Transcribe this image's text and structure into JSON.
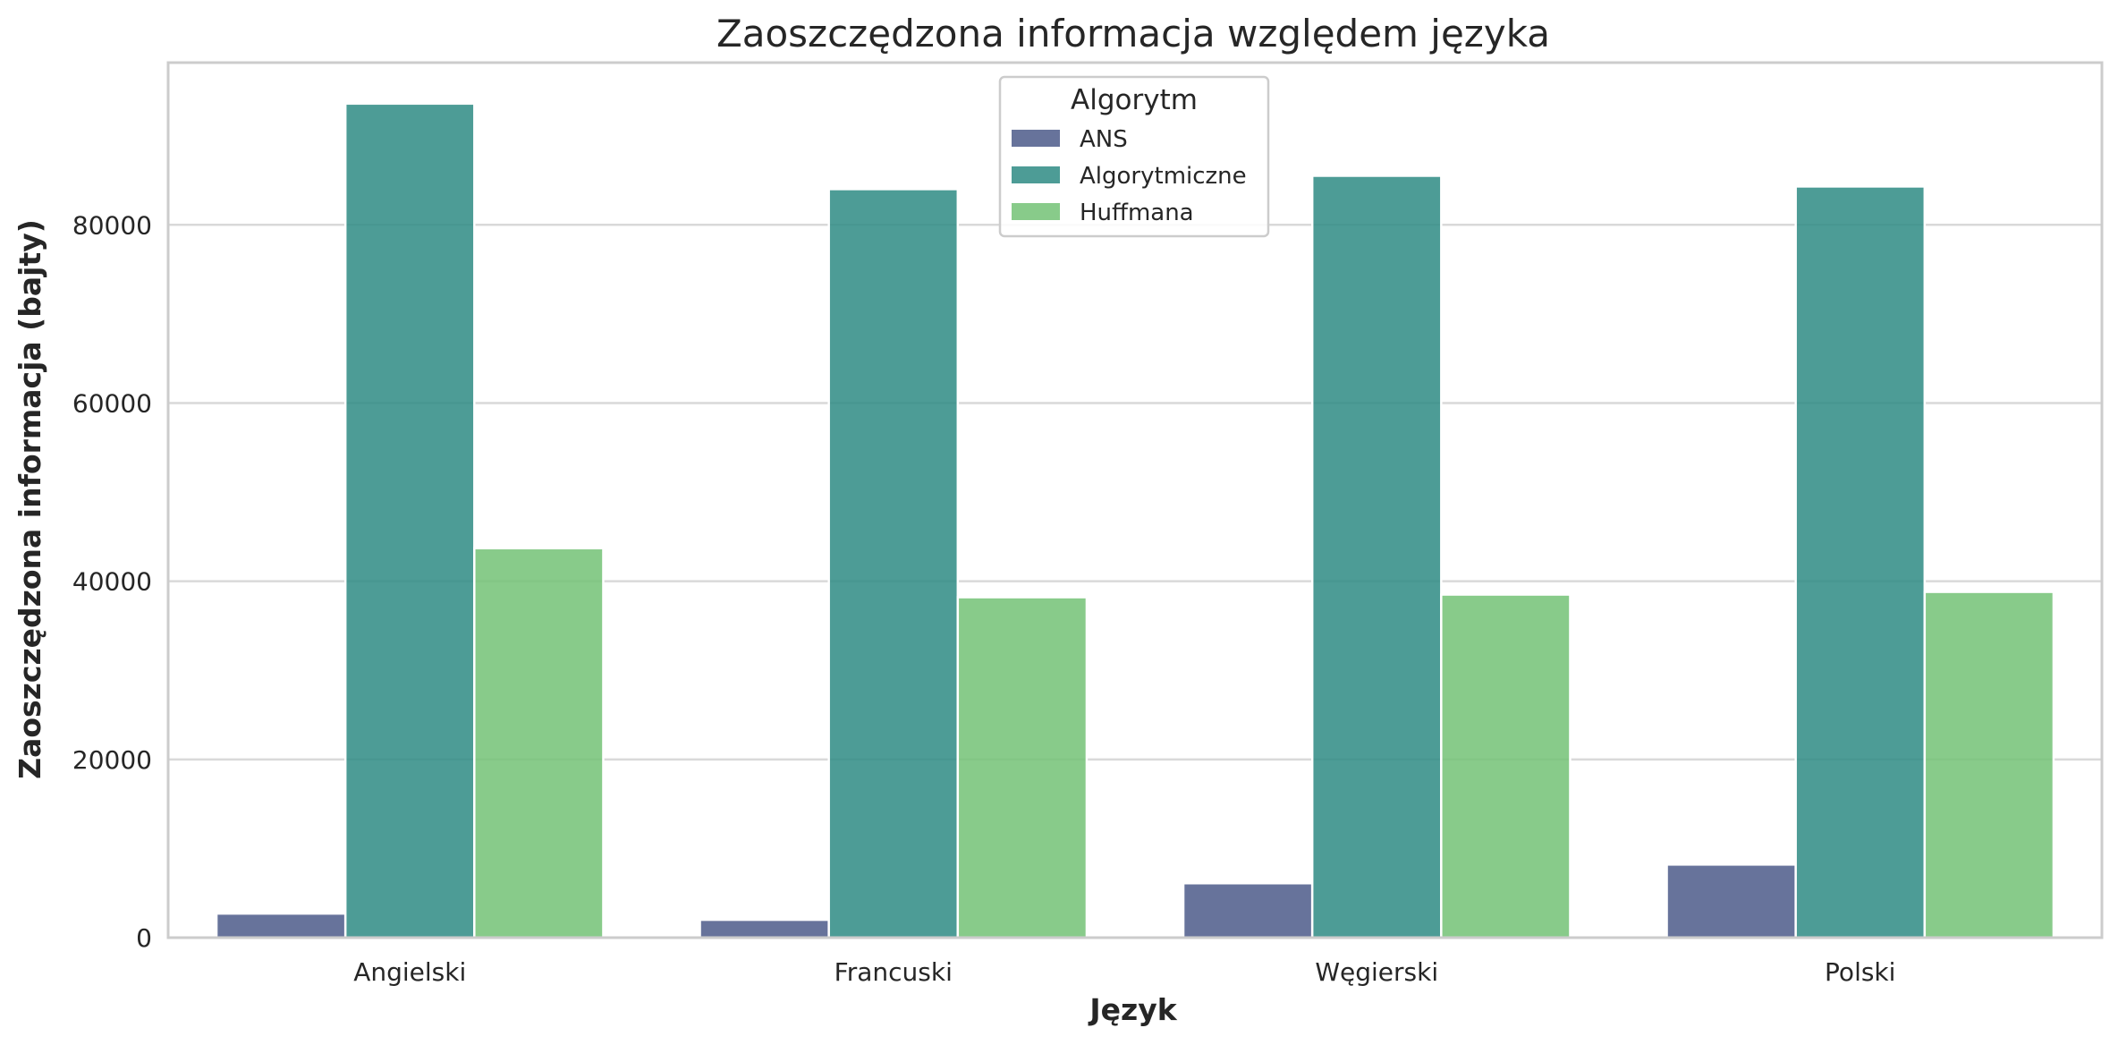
{
  "chart_data": {
    "type": "bar",
    "title": "Zaoszczędzona informacja względem języka",
    "xlabel": "Język",
    "ylabel": "Zaoszczędzona informacja (bajty)",
    "categories": [
      "Angielski",
      "Francuski",
      "Węgierski",
      "Polski"
    ],
    "series": [
      {
        "name": "ANS",
        "values": [
          2700,
          2000,
          6100,
          8200
        ],
        "color": "#4c5a8a"
      },
      {
        "name": "Algorytmiczne",
        "values": [
          93600,
          84000,
          85500,
          84300
        ],
        "color": "#2e8b84"
      },
      {
        "name": "Huffmana",
        "values": [
          43700,
          38200,
          38500,
          38800
        ],
        "color": "#73c276"
      }
    ],
    "ylim": [
      0,
      98200
    ],
    "yticks": [
      0,
      20000,
      40000,
      60000,
      80000
    ],
    "ytick_labels": [
      "0",
      "20000",
      "40000",
      "60000",
      "80000"
    ],
    "grid": true,
    "legend": {
      "title": "Algorytm",
      "placement": "top-center"
    }
  }
}
